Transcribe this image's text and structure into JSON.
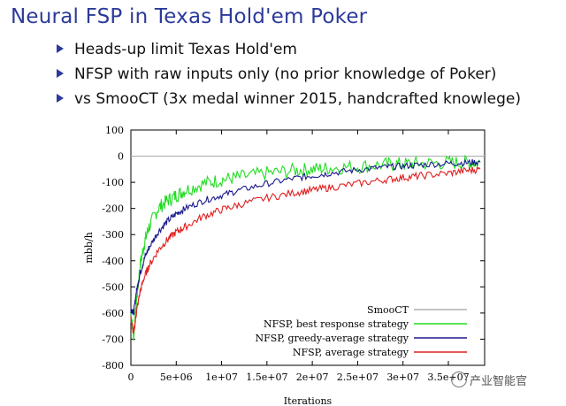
{
  "slide": {
    "title": "Neural FSP in Texas Hold'em Poker",
    "bullets": [
      "Heads-up limit Texas Hold'em",
      "NFSP with raw inputs only (no prior knowledge of Poker)",
      "vs SmooCT (3x medal winner 2015, handcrafted knowlege)"
    ],
    "watermark": "产业智能官",
    "accent_color": "#2c3a9a"
  },
  "chart_data": {
    "type": "line",
    "xlabel": "Iterations",
    "ylabel": "mbb/h",
    "xlim": [
      0,
      39000000
    ],
    "ylim": [
      -800,
      100
    ],
    "x_ticks": [
      {
        "value": 0,
        "label": "0"
      },
      {
        "value": 5000000,
        "label": "5e+06"
      },
      {
        "value": 10000000,
        "label": "1e+07"
      },
      {
        "value": 15000000,
        "label": "1.5e+07"
      },
      {
        "value": 20000000,
        "label": "2e+07"
      },
      {
        "value": 25000000,
        "label": "2.5e+07"
      },
      {
        "value": 30000000,
        "label": "3e+07"
      },
      {
        "value": 35000000,
        "label": "3.5e+07"
      }
    ],
    "y_ticks": [
      100,
      0,
      -100,
      -200,
      -300,
      -400,
      -500,
      -600,
      -700,
      -800
    ],
    "legend_position": "bottom-right",
    "series": [
      {
        "name": "SmooCT",
        "color": "#b0b0b0",
        "x": [
          0,
          39000000
        ],
        "y": [
          0,
          0
        ]
      },
      {
        "name": "NFSP, best response strategy",
        "color": "#22dd22",
        "x": [
          0,
          300000,
          600000,
          1000000,
          1500000,
          2000000,
          3000000,
          4000000,
          5000000,
          6000000,
          8000000,
          10000000,
          12000000,
          15000000,
          18000000,
          20000000,
          22000000,
          25000000,
          28000000,
          30000000,
          32000000,
          35000000,
          37000000,
          38500000
        ],
        "y": [
          -600,
          -690,
          -560,
          -420,
          -330,
          -270,
          -200,
          -170,
          -150,
          -130,
          -105,
          -90,
          -80,
          -65,
          -55,
          -50,
          -45,
          -40,
          -32,
          -30,
          -28,
          -25,
          -25,
          -25
        ]
      },
      {
        "name": "NFSP, greedy-average strategy",
        "color": "#1a1a8c",
        "x": [
          0,
          300000,
          600000,
          1000000,
          1500000,
          2000000,
          3000000,
          4000000,
          5000000,
          6000000,
          8000000,
          10000000,
          12000000,
          15000000,
          18000000,
          20000000,
          22000000,
          25000000,
          28000000,
          30000000,
          32000000,
          35000000,
          37000000,
          38500000
        ],
        "y": [
          -580,
          -600,
          -520,
          -450,
          -390,
          -350,
          -290,
          -250,
          -220,
          -200,
          -170,
          -150,
          -130,
          -105,
          -85,
          -75,
          -65,
          -52,
          -42,
          -38,
          -33,
          -28,
          -25,
          -22
        ]
      },
      {
        "name": "NFSP, average strategy",
        "color": "#e02020",
        "x": [
          0,
          300000,
          600000,
          1000000,
          1500000,
          2000000,
          3000000,
          4000000,
          5000000,
          6000000,
          8000000,
          10000000,
          12000000,
          15000000,
          18000000,
          20000000,
          22000000,
          25000000,
          28000000,
          30000000,
          32000000,
          35000000,
          37000000,
          38500000
        ],
        "y": [
          -620,
          -680,
          -600,
          -520,
          -460,
          -420,
          -360,
          -320,
          -290,
          -270,
          -230,
          -205,
          -185,
          -160,
          -140,
          -130,
          -120,
          -105,
          -90,
          -82,
          -75,
          -65,
          -55,
          -50
        ]
      }
    ]
  }
}
